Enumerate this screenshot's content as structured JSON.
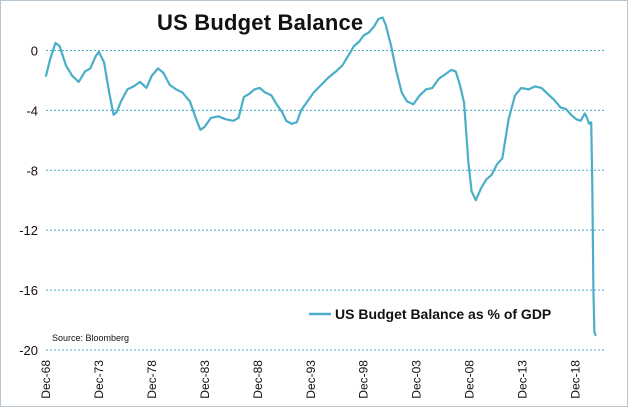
{
  "chart_data": {
    "type": "line",
    "title": "US Budget Balance",
    "xlabel": "",
    "ylabel": "",
    "ylim": [
      -20,
      2.5
    ],
    "yticks": [
      0,
      -4,
      -8,
      -12,
      -16,
      -20
    ],
    "ytick_labels": [
      "0",
      "-4",
      "-8",
      "-12",
      "-16",
      "-20"
    ],
    "xticks": [
      1968.917,
      1973.917,
      1978.917,
      1983.917,
      1988.917,
      1993.917,
      1998.917,
      2003.917,
      2008.917,
      2013.917,
      2018.917
    ],
    "xtick_labels": [
      "Dec-68",
      "Dec-73",
      "Dec-78",
      "Dec-83",
      "Dec-88",
      "Dec-93",
      "Dec-98",
      "Dec-03",
      "Dec-08",
      "Dec-13",
      "Dec-18"
    ],
    "xlim": [
      1968.917,
      2021.7
    ],
    "grid": "horizontal-dashed",
    "legend": {
      "label": "US Budget Balance as % of GDP",
      "position": "bottom-right"
    },
    "source": "Source: Bloomberg",
    "line_color": "#4aaec8",
    "series": [
      {
        "name": "US Budget Balance as % of GDP",
        "x": [
          1968.917,
          1969.3,
          1969.8,
          1970.2,
          1970.8,
          1971.4,
          1972.0,
          1972.6,
          1973.1,
          1973.6,
          1973.9,
          1974.4,
          1974.9,
          1975.3,
          1975.6,
          1976.0,
          1976.6,
          1977.2,
          1977.8,
          1978.4,
          1978.9,
          1979.5,
          1980.0,
          1980.6,
          1981.2,
          1981.8,
          1982.5,
          1983.1,
          1983.5,
          1983.9,
          1984.5,
          1985.2,
          1985.9,
          1986.6,
          1987.1,
          1987.6,
          1988.1,
          1988.6,
          1989.1,
          1989.6,
          1990.2,
          1990.7,
          1991.2,
          1991.6,
          1992.1,
          1992.6,
          1993.0,
          1993.6,
          1994.2,
          1994.9,
          1995.6,
          1996.3,
          1996.9,
          1997.5,
          1998.0,
          1998.5,
          1998.9,
          1999.4,
          1999.9,
          2000.3,
          2000.7,
          2001.0,
          2001.5,
          2002.0,
          2002.5,
          2003.0,
          2003.6,
          2004.2,
          2004.8,
          2005.4,
          2006.0,
          2006.6,
          2007.2,
          2007.6,
          2008.0,
          2008.4,
          2008.8,
          2009.1,
          2009.5,
          2010.0,
          2010.5,
          2011.0,
          2011.5,
          2012.0,
          2012.6,
          2013.2,
          2013.8,
          2014.5,
          2015.1,
          2015.7,
          2016.3,
          2016.9,
          2017.5,
          2018.0,
          2018.5,
          2019.0,
          2019.4,
          2019.8,
          2020.0,
          2020.2,
          2020.4,
          2020.5,
          2020.6,
          2020.7,
          2020.8
        ],
        "values": [
          -1.7,
          -0.6,
          0.5,
          0.3,
          -1.0,
          -1.7,
          -2.1,
          -1.4,
          -1.2,
          -0.4,
          -0.1,
          -0.8,
          -2.9,
          -4.3,
          -4.1,
          -3.4,
          -2.6,
          -2.4,
          -2.1,
          -2.5,
          -1.7,
          -1.2,
          -1.5,
          -2.3,
          -2.6,
          -2.8,
          -3.4,
          -4.6,
          -5.3,
          -5.1,
          -4.5,
          -4.4,
          -4.6,
          -4.7,
          -4.5,
          -3.1,
          -2.9,
          -2.6,
          -2.5,
          -2.8,
          -3.0,
          -3.6,
          -4.1,
          -4.7,
          -4.9,
          -4.8,
          -4.0,
          -3.4,
          -2.8,
          -2.3,
          -1.8,
          -1.4,
          -1.0,
          -0.3,
          0.3,
          0.6,
          1.0,
          1.2,
          1.6,
          2.1,
          2.2,
          1.7,
          0.3,
          -1.4,
          -2.8,
          -3.4,
          -3.6,
          -3.0,
          -2.6,
          -2.5,
          -1.9,
          -1.6,
          -1.3,
          -1.4,
          -2.3,
          -3.5,
          -7.5,
          -9.4,
          -10.0,
          -9.2,
          -8.6,
          -8.3,
          -7.6,
          -7.2,
          -4.6,
          -3.0,
          -2.5,
          -2.6,
          -2.4,
          -2.5,
          -2.9,
          -3.3,
          -3.8,
          -3.9,
          -4.3,
          -4.6,
          -4.7,
          -4.2,
          -4.5,
          -4.9,
          -4.8,
          -9.0,
          -16.0,
          -18.8,
          -19.0
        ]
      }
    ]
  }
}
